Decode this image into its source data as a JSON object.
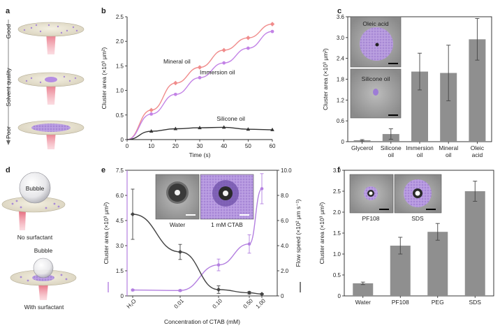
{
  "colors": {
    "mineral": "#f08c8c",
    "immersion": "#c383e6",
    "silicone": "#333333",
    "purple": "#b37fe0",
    "bar": "#8f8f8f",
    "dark": "#444444"
  },
  "panel_a": {
    "letter": "a",
    "axis_label": "Solvent quality",
    "good": "Good",
    "poor": "Poor"
  },
  "panel_d": {
    "letter": "d",
    "bubble_label_top": "Bubble",
    "no_surfactant": "No surfactant",
    "bubble_label_bottom": "Bubble",
    "with_surfactant": "With surfactant"
  },
  "chart_data": [
    {
      "panel": "b",
      "type": "line",
      "xlabel": "Time (s)",
      "ylabel": "Cluster area (×10³ μm²)",
      "xlim": [
        0,
        60
      ],
      "ylim": [
        0,
        2.5
      ],
      "xticks": [
        "0",
        "10",
        "20",
        "30",
        "40",
        "50",
        "60"
      ],
      "yticks": [
        "0",
        "0.5",
        "1.0",
        "1.5",
        "2.0",
        "2.5"
      ],
      "x": [
        10,
        20,
        30,
        40,
        50,
        60
      ],
      "series": [
        {
          "name": "Mineral oil",
          "values": [
            0.6,
            1.15,
            1.47,
            1.82,
            2.07,
            2.35
          ]
        },
        {
          "name": "Immersion oil",
          "values": [
            0.52,
            0.92,
            1.26,
            1.56,
            1.86,
            2.2
          ]
        },
        {
          "name": "Silicone oil",
          "values": [
            0.17,
            0.22,
            0.24,
            0.25,
            0.21,
            0.2
          ]
        }
      ]
    },
    {
      "panel": "c",
      "type": "bar",
      "ylabel": "Cluster area (×10³ μm²)",
      "ylim": [
        0,
        3.6
      ],
      "yticks": [
        "0",
        "0.6",
        "1.2",
        "1.8",
        "2.4",
        "3.0",
        "3.6"
      ],
      "categories": [
        "Glycerol",
        "Silicone oil",
        "Immersion oil",
        "Mineral oil",
        "Oleic acid"
      ],
      "values": [
        0.04,
        0.22,
        2.02,
        1.98,
        2.95
      ],
      "errors": [
        0.02,
        0.15,
        0.53,
        0.8,
        0.6
      ],
      "insets": [
        "Oleic acid",
        "Silicone oil"
      ]
    },
    {
      "panel": "e",
      "type": "line",
      "xlabel": "Concentration of CTAB (mM)",
      "ylabel": "Cluster area (×10³ μm²)",
      "ylabel_right": "Flow speed (×10² μm s⁻¹)",
      "xticks": [
        "H₂O",
        "0.01",
        "0.10",
        "0.50",
        "1.00"
      ],
      "ylim": [
        0,
        7.5
      ],
      "yticks": [
        "0",
        "1.5",
        "3.0",
        "4.5",
        "6.0",
        "7.5"
      ],
      "ylim_right": [
        0,
        10
      ],
      "yticks_right": [
        "0",
        "2.0",
        "4.0",
        "6.0",
        "8.0",
        "10.0"
      ],
      "series": [
        {
          "name": "Cluster area",
          "axis": "left",
          "values": [
            0.35,
            0.32,
            1.85,
            3.1,
            6.4
          ],
          "errors": [
            0.05,
            0.05,
            0.35,
            0.55,
            0.9
          ]
        },
        {
          "name": "Flow speed",
          "axis": "right",
          "values": [
            6.5,
            3.5,
            0.5,
            0.25,
            0.15
          ],
          "errors": [
            2.0,
            0.6,
            0.3,
            0.1,
            0.05
          ]
        }
      ],
      "insets": [
        "Water",
        "1 mM CTAB"
      ]
    },
    {
      "panel": "f",
      "type": "bar",
      "ylabel": "Cluster area (×10³ μm²)",
      "ylim": [
        0,
        3.0
      ],
      "yticks": [
        "0",
        "0.5",
        "1.0",
        "1.5",
        "2.0",
        "2.5",
        "3.0"
      ],
      "categories": [
        "Water",
        "PF108",
        "PEG",
        "SDS"
      ],
      "values": [
        0.3,
        1.2,
        1.53,
        2.5
      ],
      "errors": [
        0.03,
        0.2,
        0.2,
        0.24
      ],
      "insets": [
        "PF108",
        "SDS"
      ]
    }
  ]
}
